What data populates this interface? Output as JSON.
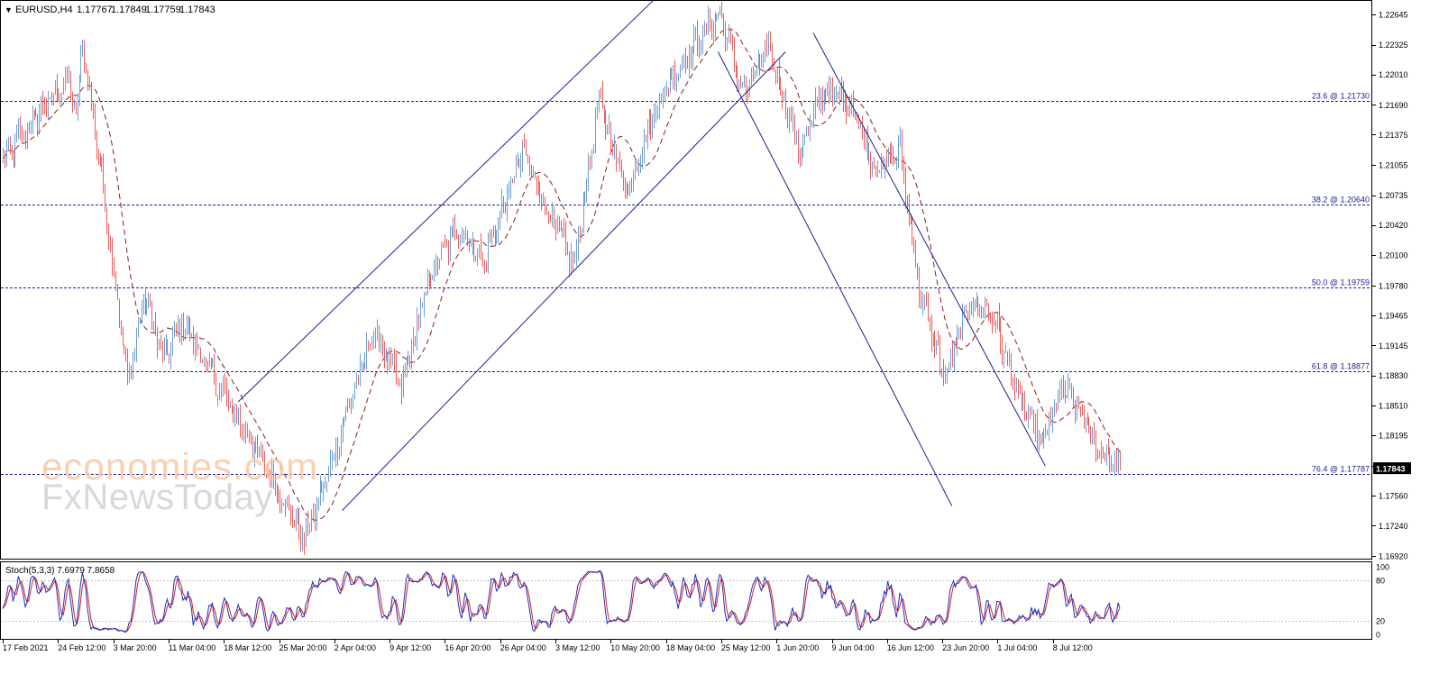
{
  "header": {
    "marker": "▼",
    "symbol": "EURUSD,H4",
    "open": "1.17767",
    "high": "1.17849",
    "low": "1.17759",
    "close": "1.17843"
  },
  "watermark": {
    "line1": "economies.com",
    "line2": "FxNewsToday"
  },
  "colors": {
    "bull": "#6f9fd6",
    "bear": "#f25b5b",
    "ma": "#8b1a1a",
    "line": "#1f1f8f",
    "stoch_main": "#1f2fbf",
    "stoch_signal": "#d42020"
  },
  "price_axis": {
    "ticks": [
      "1.22645",
      "1.22325",
      "1.22010",
      "1.21690",
      "1.21375",
      "1.21055",
      "1.20735",
      "1.20420",
      "1.20100",
      "1.19780",
      "1.19465",
      "1.19145",
      "1.18830",
      "1.18510",
      "1.18195",
      "1.17875",
      "1.17560",
      "1.17240",
      "1.16920"
    ],
    "current_price": "1.17843"
  },
  "fib_levels": [
    {
      "label": "23.6 @ 1.21730",
      "price": 1.2173
    },
    {
      "label": "38.2 @ 1.20640",
      "price": 1.2064
    },
    {
      "label": "50.0 @ 1.19759",
      "price": 1.19759
    },
    {
      "label": "61.8 @ 1.18877",
      "price": 1.18877
    },
    {
      "label": "76.4 @ 1.17787",
      "price": 1.17787
    }
  ],
  "time_axis": [
    "17 Feb 2021",
    "24 Feb 12:00",
    "3 Mar 20:00",
    "11 Mar 04:00",
    "18 Mar 12:00",
    "25 Mar 20:00",
    "2 Apr 04:00",
    "9 Apr 12:00",
    "16 Apr 20:00",
    "26 Apr 04:00",
    "3 May 12:00",
    "10 May 20:00",
    "18 May 04:00",
    "25 May 12:00",
    "1 Jun 20:00",
    "9 Jun 04:00",
    "16 Jun 12:00",
    "23 Jun 20:00",
    "1 Jul 04:00",
    "8 Jul 12:00"
  ],
  "stoch": {
    "label": "Stoch(5,3,3) 7.6979 7.8658",
    "axis_ticks": [
      "100",
      "80",
      "20",
      "0"
    ]
  },
  "chart_data": {
    "type": "candlestick",
    "symbol": "EURUSD",
    "timeframe": "H4",
    "ylim": [
      1.1692,
      1.2276
    ],
    "anchors": [
      [
        0,
        1.211
      ],
      [
        20,
        1.216
      ],
      [
        38,
        1.2195
      ],
      [
        42,
        1.2155
      ],
      [
        46,
        1.223
      ],
      [
        58,
        1.208
      ],
      [
        72,
        1.1875
      ],
      [
        82,
        1.197
      ],
      [
        92,
        1.19
      ],
      [
        104,
        1.194
      ],
      [
        115,
        1.19
      ],
      [
        135,
        1.184
      ],
      [
        150,
        1.179
      ],
      [
        174,
        1.171
      ],
      [
        186,
        1.177
      ],
      [
        198,
        1.184
      ],
      [
        214,
        1.193
      ],
      [
        230,
        1.187
      ],
      [
        246,
        1.1985
      ],
      [
        262,
        1.204
      ],
      [
        278,
        1.2005
      ],
      [
        300,
        1.212
      ],
      [
        316,
        1.205
      ],
      [
        330,
        1.2
      ],
      [
        344,
        1.2175
      ],
      [
        360,
        1.208
      ],
      [
        380,
        1.218
      ],
      [
        400,
        1.2235
      ],
      [
        414,
        1.2265
      ],
      [
        428,
        1.218
      ],
      [
        442,
        1.223
      ],
      [
        460,
        1.212
      ],
      [
        474,
        1.2185
      ],
      [
        490,
        1.217
      ],
      [
        504,
        1.21
      ],
      [
        518,
        1.212
      ],
      [
        530,
        1.1965
      ],
      [
        544,
        1.188
      ],
      [
        558,
        1.196
      ],
      [
        572,
        1.1945
      ],
      [
        586,
        1.186
      ],
      [
        600,
        1.181
      ],
      [
        612,
        1.187
      ],
      [
        622,
        1.1845
      ],
      [
        630,
        1.181
      ],
      [
        645,
        1.1785
      ]
    ],
    "moving_average": {
      "style": "dashed",
      "color": "#8b1a1a"
    },
    "channel_lines": [
      {
        "name": "rising_channel_upper",
        "points": [
          [
            1.1855,
            136
          ],
          [
            1.228,
            376
          ]
        ]
      },
      {
        "name": "rising_channel_lower",
        "points": [
          [
            1.174,
            196
          ],
          [
            1.2225,
            452
          ]
        ]
      },
      {
        "name": "falling_channel_upper",
        "points": [
          [
            1.2245,
            468
          ],
          [
            1.1787,
            602
          ]
        ]
      },
      {
        "name": "falling_channel_lower",
        "points": [
          [
            1.2225,
            413
          ],
          [
            1.1745,
            548
          ]
        ]
      }
    ]
  }
}
